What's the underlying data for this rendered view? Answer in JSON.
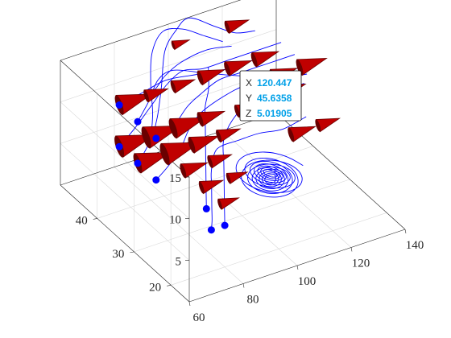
{
  "chart_data": {
    "type": "streamline-3d",
    "title": "",
    "xlabel": "",
    "ylabel": "",
    "zlabel": "",
    "xlim": [
      60,
      140
    ],
    "ylim": [
      15,
      50
    ],
    "zlim": [
      0,
      15
    ],
    "xticks": [
      "60",
      "80",
      "100",
      "120",
      "140"
    ],
    "yticks": [
      "20",
      "30",
      "40"
    ],
    "zticks": [
      "5",
      "10",
      "15"
    ],
    "grid": true,
    "colors": {
      "stream_line": "#0000ff",
      "start_marker": "#0000ff",
      "cone_face": "#c00000",
      "cone_edge": "#6a0000",
      "datatip_value": "#00a0e8"
    },
    "datatip": {
      "x_key": "X",
      "x_value": "120.447",
      "y_key": "Y",
      "y_value": "45.6358",
      "z_key": "Z",
      "z_value": "5.01905"
    },
    "stream_starts": [
      {
        "x": 75,
        "y": 45,
        "z": 10
      },
      {
        "x": 75,
        "y": 40,
        "z": 10
      },
      {
        "x": 75,
        "y": 35,
        "z": 10
      },
      {
        "x": 75,
        "y": 45,
        "z": 5
      },
      {
        "x": 75,
        "y": 40,
        "z": 5
      },
      {
        "x": 75,
        "y": 35,
        "z": 5
      },
      {
        "x": 80,
        "y": 25,
        "z": 5
      },
      {
        "x": 80,
        "y": 20,
        "z": 5
      },
      {
        "x": 75,
        "y": 20,
        "z": 5
      }
    ],
    "cones": [
      {
        "x": 75,
        "y": 45,
        "z": 10,
        "size": 0.9
      },
      {
        "x": 75,
        "y": 45,
        "z": 5,
        "size": 1.0
      },
      {
        "x": 75,
        "y": 40,
        "z": 5,
        "size": 0.9
      },
      {
        "x": 85,
        "y": 45,
        "z": 5,
        "size": 1.0
      },
      {
        "x": 85,
        "y": 40,
        "z": 5,
        "size": 1.0
      },
      {
        "x": 95,
        "y": 45,
        "z": 5,
        "size": 0.9
      },
      {
        "x": 95,
        "y": 40,
        "z": 5,
        "size": 0.7
      },
      {
        "x": 105,
        "y": 45,
        "z": 5,
        "size": 0.6
      },
      {
        "x": 85,
        "y": 35,
        "z": 5,
        "size": 0.6
      },
      {
        "x": 95,
        "y": 35,
        "z": 5,
        "size": 0.5
      },
      {
        "x": 105,
        "y": 40,
        "z": 5,
        "size": 0.5
      },
      {
        "x": 85,
        "y": 45,
        "z": 10,
        "size": 0.5
      },
      {
        "x": 95,
        "y": 45,
        "z": 10,
        "size": 0.5
      },
      {
        "x": 105,
        "y": 45,
        "z": 10,
        "size": 0.6
      },
      {
        "x": 115,
        "y": 45,
        "z": 10,
        "size": 0.6
      },
      {
        "x": 125,
        "y": 45,
        "z": 10,
        "size": 0.6
      },
      {
        "x": 115,
        "y": 40,
        "z": 10,
        "size": 0.5
      },
      {
        "x": 125,
        "y": 40,
        "z": 10,
        "size": 0.6
      },
      {
        "x": 135,
        "y": 40,
        "z": 10,
        "size": 0.7
      },
      {
        "x": 135,
        "y": 45,
        "z": 5,
        "size": 0.6
      },
      {
        "x": 125,
        "y": 35,
        "z": 5,
        "size": 0.6
      },
      {
        "x": 105,
        "y": 35,
        "z": 10,
        "size": 0.5
      },
      {
        "x": 95,
        "y": 30,
        "z": 5,
        "size": 0.4
      },
      {
        "x": 85,
        "y": 30,
        "z": 5,
        "size": 0.5
      },
      {
        "x": 85,
        "y": 25,
        "z": 5,
        "size": 0.4
      },
      {
        "x": 115,
        "y": 45,
        "z": 15,
        "size": 0.5
      },
      {
        "x": 95,
        "y": 45,
        "z": 15,
        "size": 0.3
      },
      {
        "x": 135,
        "y": 35,
        "z": 5,
        "size": 0.5
      },
      {
        "x": 125,
        "y": 45,
        "z": 5,
        "size": 0.5
      }
    ],
    "stream_paths": [
      [
        [
          75,
          45,
          10
        ],
        [
          85,
          46,
          10
        ],
        [
          95,
          47,
          10
        ],
        [
          105,
          46,
          10
        ],
        [
          115,
          45,
          10
        ],
        [
          125,
          45,
          10
        ]
      ],
      [
        [
          75,
          40,
          10
        ],
        [
          82,
          42,
          11
        ],
        [
          88,
          44,
          12
        ],
        [
          95,
          45,
          12
        ],
        [
          105,
          44,
          11
        ],
        [
          115,
          43,
          10
        ],
        [
          125,
          40,
          10
        ],
        [
          135,
          40,
          10
        ]
      ],
      [
        [
          75,
          35,
          10
        ],
        [
          80,
          38,
          8
        ],
        [
          84,
          42,
          7
        ],
        [
          88,
          44,
          8
        ],
        [
          92,
          46,
          10
        ],
        [
          96,
          48,
          13
        ],
        [
          100,
          48,
          15
        ],
        [
          105,
          48,
          16
        ],
        [
          112,
          46,
          15
        ],
        [
          118,
          45,
          14
        ],
        [
          124,
          44,
          14
        ]
      ],
      [
        [
          75,
          45,
          5
        ],
        [
          82,
          46,
          6
        ],
        [
          88,
          46,
          8
        ],
        [
          94,
          46,
          10
        ],
        [
          100,
          46,
          11
        ],
        [
          106,
          45,
          11
        ],
        [
          115,
          45,
          11
        ],
        [
          125,
          45,
          11
        ],
        [
          135,
          45,
          11
        ]
      ],
      [
        [
          75,
          40,
          5
        ],
        [
          82,
          42,
          6
        ],
        [
          86,
          44,
          8
        ],
        [
          88,
          46,
          11
        ],
        [
          90,
          47,
          14
        ],
        [
          94,
          47,
          16
        ],
        [
          100,
          46,
          16
        ],
        [
          106,
          45,
          15
        ],
        [
          112,
          44,
          14
        ]
      ],
      [
        [
          75,
          35,
          5
        ],
        [
          82,
          37,
          5
        ],
        [
          88,
          38,
          6
        ],
        [
          94,
          40,
          7
        ],
        [
          100,
          41,
          8
        ],
        [
          108,
          41,
          9
        ],
        [
          115,
          40,
          10
        ],
        [
          125,
          39,
          10
        ],
        [
          135,
          38,
          10
        ]
      ],
      [
        [
          80,
          25,
          5
        ],
        [
          84,
          28,
          5
        ],
        [
          88,
          31,
          6
        ],
        [
          92,
          34,
          7
        ],
        [
          96,
          37,
          8
        ],
        [
          100,
          40,
          9
        ],
        [
          104,
          42,
          10
        ],
        [
          108,
          45,
          11
        ]
      ],
      [
        [
          80,
          20,
          5
        ],
        [
          84,
          23,
          5
        ],
        [
          88,
          26,
          5
        ],
        [
          92,
          29,
          6
        ],
        [
          96,
          32,
          6
        ],
        [
          100,
          35,
          7
        ],
        [
          106,
          37,
          8
        ],
        [
          114,
          38,
          9
        ],
        [
          124,
          38,
          9
        ],
        [
          134,
          38,
          9
        ]
      ],
      [
        [
          75,
          20,
          5
        ],
        [
          78,
          22,
          5
        ],
        [
          82,
          25,
          5
        ],
        [
          86,
          28,
          6
        ],
        [
          90,
          31,
          6
        ],
        [
          94,
          33,
          7
        ],
        [
          98,
          34,
          7
        ],
        [
          104,
          34,
          7
        ],
        [
          112,
          34,
          7
        ],
        [
          122,
          35,
          6
        ],
        [
          132,
          36,
          6
        ]
      ],
      [
        [
          95,
          45,
          5
        ],
        [
          100,
          45,
          7
        ],
        [
          105,
          45,
          8
        ],
        [
          112,
          45,
          9
        ],
        [
          120,
          45,
          9
        ],
        [
          130,
          45,
          9
        ],
        [
          140,
          45,
          9
        ]
      ],
      [
        [
          85,
          45,
          10
        ],
        [
          90,
          46,
          10
        ],
        [
          96,
          48,
          10
        ],
        [
          102,
          48,
          11
        ],
        [
          110,
          47,
          12
        ],
        [
          118,
          46,
          12
        ]
      ]
    ],
    "spiral": {
      "cx": 112,
      "cy": 31,
      "cz": 3,
      "r_start": 12,
      "r_end": 1.5,
      "turns": 14
    }
  }
}
